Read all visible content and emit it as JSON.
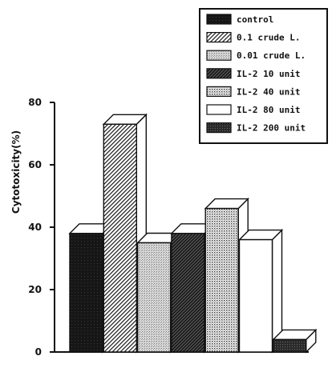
{
  "chart_data": {
    "type": "bar",
    "ylabel": "Cytotoxicity(%)",
    "ylim": [
      0,
      80
    ],
    "yticks": [
      0,
      20,
      40,
      60,
      80
    ],
    "grid": false,
    "legend_position": "top-right",
    "series": [
      {
        "name": "control",
        "value": 38,
        "pattern": "solid-dark",
        "color": "#151515"
      },
      {
        "name": "0.1 crude L.",
        "value": 73,
        "pattern": "diagonal-hatch",
        "color": "#444444"
      },
      {
        "name": "0.01 crude L.",
        "value": 35,
        "pattern": "light-dots",
        "color": "#9a9a9a"
      },
      {
        "name": "IL-2 10 unit",
        "value": 38,
        "pattern": "dark-hatch",
        "color": "#333333"
      },
      {
        "name": "IL-2 40 unit",
        "value": 46,
        "pattern": "dots",
        "color": "#777777"
      },
      {
        "name": "IL-2 80 unit",
        "value": 36,
        "pattern": "white",
        "color": "#ffffff"
      },
      {
        "name": "IL-2 200 unit",
        "value": 4,
        "pattern": "dark-dots",
        "color": "#333333"
      }
    ]
  }
}
